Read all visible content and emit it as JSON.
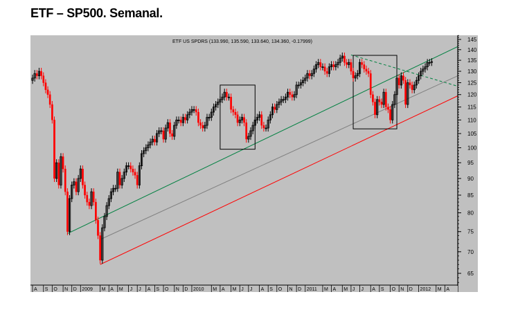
{
  "title": "ETF – SP500. Semanal.",
  "chart_data": {
    "type": "candlestick",
    "title": "ETF US SPDRS (133.990, 135.590, 133.640, 134.360, -0.17999)",
    "scale": "log",
    "ylim": [
      62,
      147
    ],
    "yticks": [
      65,
      70,
      75,
      80,
      85,
      90,
      95,
      100,
      105,
      110,
      115,
      120,
      125,
      130,
      135,
      140,
      145
    ],
    "closes": [
      127,
      129,
      128,
      130,
      128,
      125,
      122,
      120,
      116,
      110,
      90,
      95,
      88,
      97,
      93,
      86,
      75,
      84,
      88,
      89,
      86,
      90,
      93,
      88,
      85,
      83,
      82,
      86,
      83,
      78,
      74,
      68,
      76,
      79,
      82,
      84,
      86,
      87,
      87,
      92,
      88,
      90,
      92,
      94,
      94,
      93,
      92,
      91,
      88,
      94,
      98,
      99,
      100,
      101,
      102,
      103,
      102,
      105,
      106,
      106,
      103,
      107,
      109,
      105,
      104,
      108,
      110,
      110,
      109,
      111,
      110,
      112,
      113,
      114,
      114,
      113,
      109,
      108,
      107,
      108,
      111,
      111,
      113,
      115,
      116,
      117,
      118,
      119,
      121,
      119,
      119,
      114,
      113,
      112,
      109,
      110,
      111,
      109,
      103,
      104,
      106,
      108,
      110,
      111,
      112,
      108,
      107,
      107,
      110,
      112,
      115,
      114,
      116,
      117,
      118,
      118,
      119,
      121,
      120,
      119,
      120,
      124,
      124,
      125,
      126,
      127,
      129,
      128,
      129,
      131,
      133,
      134,
      132,
      132,
      130,
      129,
      132,
      133,
      132,
      133,
      134,
      136,
      137,
      134,
      133,
      134,
      130,
      127,
      128,
      129,
      134,
      133,
      131,
      130,
      129,
      120,
      117,
      112,
      118,
      117,
      116,
      121,
      115,
      114,
      110,
      116,
      120,
      127,
      124,
      128,
      126,
      116,
      125,
      124,
      122,
      124,
      126,
      128,
      130,
      131,
      132,
      134,
      134,
      134.36
    ],
    "first_open": 126,
    "x_labels": [
      {
        "w": 0,
        "t": "A"
      },
      {
        "w": 5,
        "t": "S"
      },
      {
        "w": 9,
        "t": "O"
      },
      {
        "w": 14,
        "t": "N"
      },
      {
        "w": 18,
        "t": "D"
      },
      {
        "w": 22,
        "t": "2009"
      },
      {
        "w": 31,
        "t": "M"
      },
      {
        "w": 35,
        "t": "A"
      },
      {
        "w": 39,
        "t": "M"
      },
      {
        "w": 44,
        "t": "J"
      },
      {
        "w": 48,
        "t": "J"
      },
      {
        "w": 52,
        "t": "A"
      },
      {
        "w": 56,
        "t": "S"
      },
      {
        "w": 60,
        "t": "O"
      },
      {
        "w": 65,
        "t": "N"
      },
      {
        "w": 69,
        "t": "D"
      },
      {
        "w": 73,
        "t": "2010"
      },
      {
        "w": 82,
        "t": "M"
      },
      {
        "w": 86,
        "t": "A"
      },
      {
        "w": 91,
        "t": "M"
      },
      {
        "w": 95,
        "t": "J"
      },
      {
        "w": 99,
        "t": "J"
      },
      {
        "w": 104,
        "t": "A"
      },
      {
        "w": 108,
        "t": "S"
      },
      {
        "w": 112,
        "t": "O"
      },
      {
        "w": 117,
        "t": "N"
      },
      {
        "w": 121,
        "t": "D"
      },
      {
        "w": 125,
        "t": "2011"
      },
      {
        "w": 133,
        "t": "M"
      },
      {
        "w": 137,
        "t": "A"
      },
      {
        "w": 142,
        "t": "M"
      },
      {
        "w": 146,
        "t": "J"
      },
      {
        "w": 150,
        "t": "J"
      },
      {
        "w": 155,
        "t": "A"
      },
      {
        "w": 159,
        "t": "S"
      },
      {
        "w": 164,
        "t": "O"
      },
      {
        "w": 168,
        "t": "N"
      },
      {
        "w": 172,
        "t": "D"
      },
      {
        "w": 177,
        "t": "2012"
      },
      {
        "w": 185,
        "t": "M"
      },
      {
        "w": 189,
        "t": "A"
      }
    ],
    "trendlines": [
      {
        "name": "upper-channel",
        "color": "#008040",
        "dash": false,
        "from": [
          16,
          74.5
        ],
        "to": [
          196,
          141.5
        ]
      },
      {
        "name": "middle-channel",
        "color": "#808080",
        "dash": false,
        "from": [
          31,
          73
        ],
        "to": [
          196,
          128
        ]
      },
      {
        "name": "lower-channel",
        "color": "#ff0000",
        "dash": false,
        "from": [
          31,
          67
        ],
        "to": [
          196,
          119.5
        ]
      },
      {
        "name": "resistance-dashed",
        "color": "#008040",
        "dash": true,
        "from": [
          146,
          137.5
        ],
        "to": [
          196,
          123.5
        ]
      }
    ],
    "boxes": [
      {
        "from_week": 86,
        "to_week": 102,
        "high": 124,
        "low": 99.5
      },
      {
        "from_week": 147,
        "to_week": 167,
        "high": 137.3,
        "low": 106.7
      }
    ],
    "colors": {
      "up": "#000000",
      "down": "#ff0000",
      "background": "#c0c0c0"
    }
  }
}
